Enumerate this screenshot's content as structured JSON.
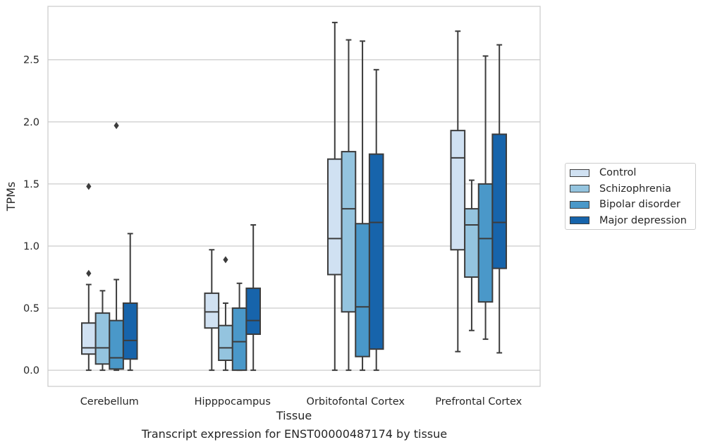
{
  "chart_data": {
    "type": "box",
    "caption": "Transcript expression for ENST00000487174 by tissue",
    "xlabel": "Tissue",
    "ylabel": "TPMs",
    "ylim": [
      -0.13,
      2.93
    ],
    "yticks": [
      {
        "v": 0.0,
        "t": "0.0"
      },
      {
        "v": 0.5,
        "t": "0.5"
      },
      {
        "v": 1.0,
        "t": "1.0"
      },
      {
        "v": 1.5,
        "t": "1.5"
      },
      {
        "v": 2.0,
        "t": "2.0"
      },
      {
        "v": 2.5,
        "t": "2.5"
      }
    ],
    "grid": "horizontal",
    "legend_position": "right",
    "categories": [
      "Cerebellum",
      "Hipppocampus",
      "Orbitofontal Cortex",
      "Prefrontal Cortex"
    ],
    "series": [
      {
        "name": "Control",
        "color": "#d0e1f2",
        "boxes": [
          {
            "whislo": 0.0,
            "q1": 0.13,
            "med": 0.18,
            "q3": 0.38,
            "whishi": 0.69,
            "fliers": [
              0.78,
              1.48
            ]
          },
          {
            "whislo": 0.0,
            "q1": 0.34,
            "med": 0.47,
            "q3": 0.62,
            "whishi": 0.97,
            "fliers": []
          },
          {
            "whislo": 0.0,
            "q1": 0.77,
            "med": 1.06,
            "q3": 1.7,
            "whishi": 2.8,
            "fliers": []
          },
          {
            "whislo": 0.15,
            "q1": 0.97,
            "med": 1.71,
            "q3": 1.93,
            "whishi": 2.73,
            "fliers": []
          }
        ]
      },
      {
        "name": "Schizophrenia",
        "color": "#94c4df",
        "boxes": [
          {
            "whislo": 0.0,
            "q1": 0.05,
            "med": 0.18,
            "q3": 0.46,
            "whishi": 0.64,
            "fliers": []
          },
          {
            "whislo": 0.0,
            "q1": 0.08,
            "med": 0.18,
            "q3": 0.36,
            "whishi": 0.54,
            "fliers": [
              0.89
            ]
          },
          {
            "whislo": 0.0,
            "q1": 0.47,
            "med": 1.3,
            "q3": 1.76,
            "whishi": 2.66,
            "fliers": []
          },
          {
            "whislo": 0.32,
            "q1": 0.75,
            "med": 1.17,
            "q3": 1.3,
            "whishi": 1.53,
            "fliers": []
          }
        ]
      },
      {
        "name": "Bipolar disorder",
        "color": "#4a98c9",
        "boxes": [
          {
            "whislo": 0.0,
            "q1": 0.01,
            "med": 0.1,
            "q3": 0.4,
            "whishi": 0.73,
            "fliers": [
              1.97
            ]
          },
          {
            "whislo": 0.0,
            "q1": 0.0,
            "med": 0.23,
            "q3": 0.5,
            "whishi": 0.7,
            "fliers": []
          },
          {
            "whislo": 0.0,
            "q1": 0.11,
            "med": 0.51,
            "q3": 1.18,
            "whishi": 2.65,
            "fliers": []
          },
          {
            "whislo": 0.25,
            "q1": 0.55,
            "med": 1.06,
            "q3": 1.5,
            "whishi": 2.53,
            "fliers": []
          }
        ]
      },
      {
        "name": "Major depression",
        "color": "#1764ab",
        "boxes": [
          {
            "whislo": 0.0,
            "q1": 0.09,
            "med": 0.24,
            "q3": 0.54,
            "whishi": 1.1,
            "fliers": []
          },
          {
            "whislo": 0.0,
            "q1": 0.29,
            "med": 0.4,
            "q3": 0.66,
            "whishi": 1.17,
            "fliers": []
          },
          {
            "whislo": 0.0,
            "q1": 0.17,
            "med": 1.19,
            "q3": 1.74,
            "whishi": 2.42,
            "fliers": []
          },
          {
            "whislo": 0.14,
            "q1": 0.82,
            "med": 1.19,
            "q3": 1.9,
            "whishi": 2.62,
            "fliers": []
          }
        ]
      }
    ]
  }
}
